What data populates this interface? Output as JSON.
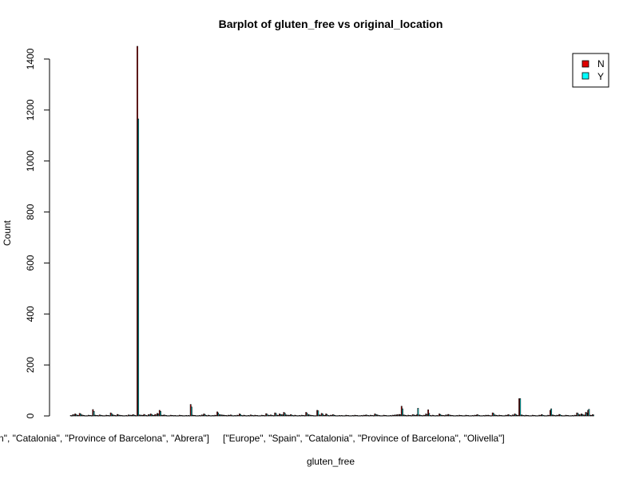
{
  "chart_data": {
    "type": "bar",
    "title": "Barplot of gluten_free vs original_location",
    "xlabel": "gluten_free",
    "ylabel": "Count",
    "ylim": [
      0,
      1450
    ],
    "yticks": [
      0,
      200,
      400,
      600,
      800,
      1000,
      1200,
      1400
    ],
    "visible_category_labels": [
      "[\"Europe\", \"Spain\", \"Catalonia\", \"Province of Barcelona\", \"Abrera\"]",
      "[\"Europe\", \"Spain\", \"Catalonia\", \"Province of Barcelona\", \"Olivella\"]"
    ],
    "legend": {
      "position": "top-right",
      "entries": [
        {
          "name": "N",
          "color": "#DF0000"
        },
        {
          "name": "Y",
          "color": "#00FFFF"
        }
      ]
    },
    "grid": false,
    "series": [
      {
        "name": "N",
        "color": "#DF0000",
        "values": [
          2,
          5,
          8,
          3,
          10,
          4,
          2,
          1,
          3,
          2,
          25,
          3,
          2,
          4,
          2,
          1,
          3,
          2,
          12,
          4,
          2,
          6,
          3,
          2,
          1,
          2,
          4,
          3,
          5,
          2,
          1450,
          4,
          3,
          6,
          2,
          5,
          8,
          3,
          6,
          10,
          22,
          3,
          4,
          2,
          1,
          3,
          2,
          2,
          1,
          3,
          2,
          1,
          2,
          2,
          45,
          3,
          2,
          1,
          2,
          4,
          8,
          2,
          3,
          1,
          2,
          3,
          16,
          5,
          4,
          3,
          2,
          3,
          4,
          1,
          2,
          3,
          8,
          2,
          3,
          1,
          2,
          4,
          2,
          3,
          2,
          1,
          3,
          2,
          9,
          3,
          4,
          2,
          12,
          3,
          8,
          5,
          14,
          4,
          3,
          5,
          2,
          3,
          1,
          2,
          3,
          2,
          14,
          5,
          3,
          2,
          1,
          22,
          4,
          10,
          3,
          8,
          2,
          3,
          5,
          2,
          1,
          2,
          2,
          1,
          3,
          2,
          1,
          2,
          3,
          2,
          1,
          2,
          3,
          4,
          2,
          3,
          2,
          8,
          4,
          2,
          1,
          3,
          2,
          1,
          2,
          3,
          4,
          5,
          6,
          38,
          4,
          2,
          3,
          2,
          5,
          3,
          6,
          4,
          2,
          3,
          8,
          24,
          2,
          3,
          1,
          2,
          8,
          3,
          2,
          4,
          6,
          3,
          2,
          1,
          2,
          3,
          2,
          1,
          3,
          2,
          1,
          2,
          3,
          5,
          2,
          1,
          2,
          3,
          3,
          1,
          12,
          4,
          2,
          3,
          2,
          1,
          3,
          5,
          2,
          4,
          8,
          3,
          68,
          4,
          2,
          3,
          2,
          1,
          3,
          2,
          1,
          3,
          5,
          2,
          1,
          3,
          22,
          4,
          2,
          3,
          6,
          2,
          1,
          3,
          2,
          1,
          2,
          3,
          12,
          5,
          8,
          4,
          14,
          22,
          3,
          5
        ],
        "_y": [
          1,
          4,
          6,
          2,
          8,
          3,
          1,
          1,
          2,
          1,
          18,
          2,
          1,
          3,
          1,
          1,
          2,
          1,
          9,
          3,
          1,
          4,
          2,
          1,
          1,
          1,
          3,
          2,
          4,
          1,
          1165,
          3,
          2,
          4,
          1,
          4,
          6,
          2,
          4,
          8,
          18,
          2,
          3,
          1,
          1,
          2,
          1,
          1,
          1,
          2,
          1,
          1,
          1,
          1,
          35,
          2,
          1,
          1,
          1,
          3,
          6,
          1,
          2,
          1,
          1,
          2,
          12,
          4,
          3,
          2,
          1,
          2,
          3,
          1,
          1,
          2,
          6,
          1,
          2,
          1,
          1,
          3,
          1,
          2,
          1,
          1,
          2,
          1,
          7,
          2,
          3,
          1,
          10,
          2,
          6,
          4,
          11,
          3,
          2,
          4,
          1,
          2,
          1,
          1,
          2,
          1,
          11,
          4,
          2,
          1,
          1,
          20,
          3,
          8,
          2,
          6,
          1,
          2,
          4,
          1,
          1,
          1,
          1,
          1,
          2,
          1,
          1,
          1,
          2,
          1,
          1,
          1,
          2,
          3,
          1,
          2,
          1,
          6,
          3,
          1,
          1,
          2,
          1,
          1,
          1,
          2,
          3,
          4,
          5,
          28,
          3,
          1,
          2,
          1,
          4,
          2,
          30,
          3,
          1,
          2,
          6,
          10,
          1,
          2,
          1,
          1,
          6,
          2,
          1,
          3,
          4,
          2,
          1,
          1,
          1,
          2,
          1,
          1,
          2,
          1,
          1,
          1,
          2,
          4,
          1,
          1,
          1,
          2,
          2,
          1,
          10,
          3,
          1,
          2,
          1,
          1,
          2,
          4,
          1,
          3,
          6,
          2,
          68,
          3,
          1,
          2,
          1,
          1,
          2,
          1,
          1,
          2,
          4,
          1,
          1,
          2,
          28,
          3,
          1,
          2,
          5,
          1,
          1,
          2,
          1,
          1,
          1,
          2,
          10,
          4,
          6,
          3,
          12,
          26,
          2,
          4
        ]
      },
      {
        "name": "Y",
        "color": "#00FFFF",
        "values": [
          1,
          4,
          6,
          2,
          8,
          3,
          1,
          1,
          2,
          1,
          18,
          2,
          1,
          3,
          1,
          1,
          2,
          1,
          9,
          3,
          1,
          4,
          2,
          1,
          1,
          1,
          3,
          2,
          4,
          1,
          1165,
          3,
          2,
          4,
          1,
          4,
          6,
          2,
          4,
          8,
          18,
          2,
          3,
          1,
          1,
          2,
          1,
          1,
          1,
          2,
          1,
          1,
          1,
          1,
          35,
          2,
          1,
          1,
          1,
          3,
          6,
          1,
          2,
          1,
          1,
          2,
          12,
          4,
          3,
          2,
          1,
          2,
          3,
          1,
          1,
          2,
          6,
          1,
          2,
          1,
          1,
          3,
          1,
          2,
          1,
          1,
          2,
          1,
          7,
          2,
          3,
          1,
          10,
          2,
          6,
          4,
          11,
          3,
          2,
          4,
          1,
          2,
          1,
          1,
          2,
          1,
          11,
          4,
          2,
          1,
          1,
          20,
          3,
          8,
          2,
          6,
          1,
          2,
          4,
          1,
          1,
          1,
          1,
          1,
          2,
          1,
          1,
          1,
          2,
          1,
          1,
          1,
          2,
          3,
          1,
          2,
          1,
          6,
          3,
          1,
          1,
          2,
          1,
          1,
          1,
          2,
          3,
          4,
          5,
          28,
          3,
          1,
          2,
          1,
          4,
          2,
          30,
          3,
          1,
          2,
          6,
          10,
          1,
          2,
          1,
          1,
          6,
          2,
          1,
          3,
          4,
          2,
          1,
          1,
          1,
          2,
          1,
          1,
          2,
          1,
          1,
          1,
          2,
          4,
          1,
          1,
          1,
          2,
          2,
          1,
          10,
          3,
          1,
          2,
          1,
          1,
          2,
          4,
          1,
          3,
          6,
          2,
          68,
          3,
          1,
          2,
          1,
          1,
          2,
          1,
          1,
          2,
          4,
          1,
          1,
          2,
          28,
          3,
          1,
          2,
          5,
          1,
          1,
          2,
          1,
          1,
          1,
          2,
          10,
          4,
          6,
          3,
          12,
          26,
          2,
          4
        ]
      }
    ]
  }
}
